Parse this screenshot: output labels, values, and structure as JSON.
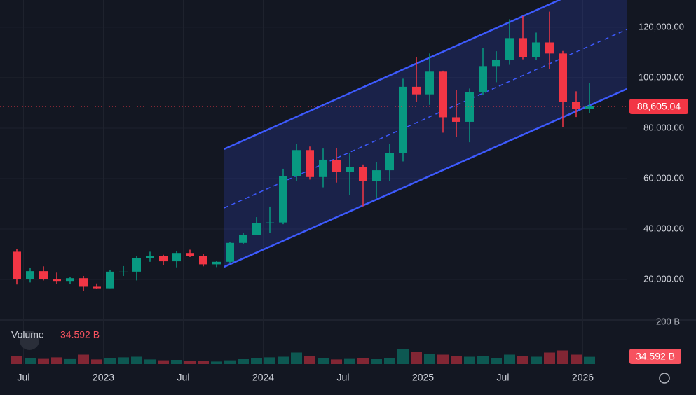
{
  "chart_data": {
    "type": "candlestick",
    "x": [
      "2022-06",
      "2022-07",
      "2022-08",
      "2022-09",
      "2022-10",
      "2022-11",
      "2022-12",
      "2023-01",
      "2023-02",
      "2023-03",
      "2023-04",
      "2023-05",
      "2023-06",
      "2023-07",
      "2023-08",
      "2023-09",
      "2023-10",
      "2023-11",
      "2023-12",
      "2024-01",
      "2024-02",
      "2024-03",
      "2024-04",
      "2024-05",
      "2024-06",
      "2024-07",
      "2024-08",
      "2024-09",
      "2024-10",
      "2024-11",
      "2024-12",
      "2025-01",
      "2025-02",
      "2025-03",
      "2025-04",
      "2025-05",
      "2025-06",
      "2025-07",
      "2025-08",
      "2025-09",
      "2025-10",
      "2025-11",
      "2025-12",
      "2026-01"
    ],
    "open": [
      31000,
      20000,
      23300,
      20000,
      19400,
      20500,
      17100,
      16500,
      23100,
      23100,
      28500,
      29200,
      27200,
      30500,
      29200,
      26000,
      27000,
      34500,
      37700,
      42300,
      42600,
      61100,
      71300,
      60600,
      67500,
      62700,
      64600,
      58900,
      63300,
      70200,
      96400,
      93400,
      102400,
      84300,
      82500,
      94200,
      104600,
      107100,
      115700,
      108200,
      114000,
      109600,
      90400,
      87600
    ],
    "high": [
      32000,
      24500,
      25200,
      22700,
      21000,
      21400,
      18400,
      23900,
      25300,
      29200,
      31000,
      29800,
      31400,
      31800,
      30200,
      27500,
      35000,
      38400,
      44700,
      48900,
      63900,
      73800,
      72700,
      71900,
      72000,
      70000,
      65600,
      66500,
      73600,
      99600,
      108300,
      109600,
      102800,
      95000,
      95700,
      111900,
      110500,
      123200,
      124400,
      117900,
      126200,
      110600,
      94600,
      97900
    ],
    "low": [
      18000,
      18800,
      19600,
      18200,
      18200,
      15500,
      16300,
      16500,
      21400,
      19600,
      27000,
      25800,
      24800,
      28900,
      25200,
      24900,
      26600,
      34100,
      37600,
      38500,
      41900,
      59000,
      59600,
      56500,
      58400,
      53500,
      49000,
      52500,
      58900,
      66800,
      90500,
      89200,
      78200,
      76600,
      74400,
      93300,
      98200,
      105100,
      107300,
      107200,
      103500,
      80500,
      84400,
      86000
    ],
    "close": [
      20000,
      23300,
      20000,
      19400,
      20500,
      17100,
      16500,
      23100,
      23100,
      28500,
      29200,
      27200,
      30500,
      29200,
      26000,
      27000,
      34500,
      37700,
      42300,
      42600,
      61100,
      71300,
      60600,
      67500,
      62700,
      64600,
      58900,
      63300,
      70200,
      96400,
      93400,
      102400,
      84300,
      82500,
      94200,
      104600,
      107100,
      115700,
      108200,
      114000,
      109600,
      90400,
      87600,
      88605.04
    ],
    "up_color": "#089981",
    "down_color": "#f23645",
    "last_price": 88605.04,
    "last_price_label": "88,605.04",
    "ylim": [
      3900,
      130800
    ],
    "yticks": [
      {
        "value": 20000,
        "label": "20,000.00"
      },
      {
        "value": 40000,
        "label": "40,000.00"
      },
      {
        "value": 60000,
        "label": "60,000.00"
      },
      {
        "value": 80000,
        "label": "80,000.00"
      },
      {
        "value": 100000,
        "label": "100,000.00"
      },
      {
        "value": 120000,
        "label": "120,000.00"
      }
    ],
    "xticks": [
      {
        "value": "2022-07",
        "label": "Jul"
      },
      {
        "value": "2023-01",
        "label": "2023"
      },
      {
        "value": "2023-07",
        "label": "Jul"
      },
      {
        "value": "2024-01",
        "label": "2024"
      },
      {
        "value": "2024-07",
        "label": "Jul"
      },
      {
        "value": "2025-01",
        "label": "2025"
      },
      {
        "value": "2025-07",
        "label": "Jul"
      },
      {
        "value": "2026-01",
        "label": "2026"
      }
    ],
    "grid": true,
    "channel": {
      "start": "2023-10-03",
      "end": "2026-04-11",
      "lower": [
        25000,
        95600
      ],
      "upper": [
        71700,
        142800
      ],
      "color": "#3d5afe"
    },
    "volume": {
      "title": "Volume",
      "values": [
        38,
        30,
        28,
        32,
        27,
        45,
        22,
        30,
        32,
        35,
        22,
        18,
        20,
        15,
        14,
        12,
        18,
        25,
        30,
        32,
        35,
        55,
        40,
        30,
        22,
        28,
        30,
        25,
        30,
        70,
        60,
        50,
        45,
        40,
        35,
        40,
        30,
        45,
        40,
        35,
        55,
        65,
        45,
        34.592
      ],
      "last_label": "34.592 B",
      "ylim": [
        0,
        200
      ],
      "yticks": [
        {
          "value": 200,
          "label": "200 B"
        }
      ]
    }
  }
}
